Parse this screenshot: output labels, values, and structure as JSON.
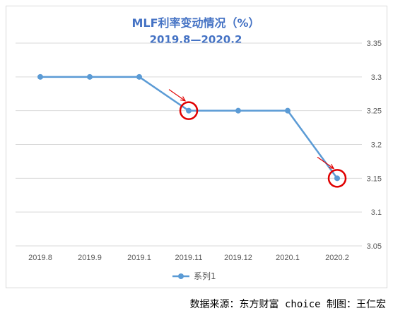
{
  "chart_data": {
    "type": "line",
    "title": "MLF利率变动情况（%）",
    "subtitle": "2019.8—2020.2",
    "categories": [
      "2019.8",
      "2019.9",
      "2019.1",
      "2019.11",
      "2019.12",
      "2020.1",
      "2020.2"
    ],
    "series": [
      {
        "name": "系列1",
        "values": [
          3.3,
          3.3,
          3.3,
          3.25,
          3.25,
          3.25,
          3.15
        ]
      }
    ],
    "y_ticks": [
      "3.35",
      "3.3",
      "3.25",
      "3.2",
      "3.15",
      "3.1",
      "3.05"
    ],
    "ylim": [
      3.05,
      3.35
    ],
    "grid": true,
    "legend": "bottom",
    "highlighted_categories": [
      "2019.11",
      "2020.2"
    ],
    "colors": {
      "line": "#5b9bd5",
      "title": "#4472c4",
      "highlight": "#e00000",
      "grid": "#d9d9d9"
    }
  },
  "source_note": "数据来源：东方财富 choice 制图：王仁宏"
}
